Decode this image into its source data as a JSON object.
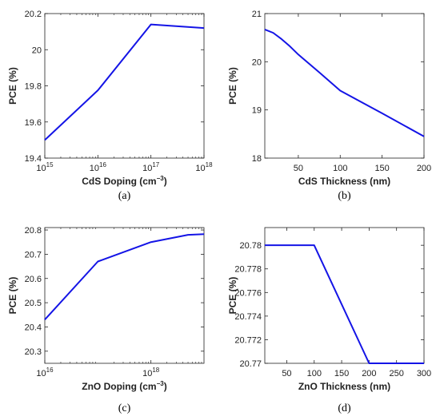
{
  "colors": {
    "line": "#1414e6",
    "axis": "#222222"
  },
  "chart_data": [
    {
      "id": "a",
      "type": "line",
      "caption": "(a)",
      "xlabel": "CdS Doping (cm",
      "xlabel_sup": "−3",
      "xlabel_suffix": ")",
      "ylabel": "PCE (%)",
      "xscale": "log",
      "xlim": [
        1000000000000000.0,
        1e+18
      ],
      "ylim": [
        19.4,
        20.2
      ],
      "xticks": [
        {
          "v": 1000000000000000.0,
          "base": "10",
          "exp": "15"
        },
        {
          "v": 1e+16,
          "base": "10",
          "exp": "16"
        },
        {
          "v": 1e+17,
          "base": "10",
          "exp": "17"
        },
        {
          "v": 1e+18,
          "base": "10",
          "exp": "18"
        }
      ],
      "yticks": [
        {
          "v": 19.4,
          "label": "19.4"
        },
        {
          "v": 19.6,
          "label": "19.6"
        },
        {
          "v": 19.8,
          "label": "19.8"
        },
        {
          "v": 20.0,
          "label": "20"
        },
        {
          "v": 20.2,
          "label": "20.2"
        }
      ],
      "series": [
        {
          "x": [
            1000000000000000.0,
            1e+16,
            1e+17,
            1e+18
          ],
          "y": [
            19.5,
            19.775,
            20.14,
            20.12
          ]
        }
      ]
    },
    {
      "id": "b",
      "type": "line",
      "caption": "(b)",
      "xlabel": "CdS Thickness (nm)",
      "xlabel_sup": "",
      "xlabel_suffix": "",
      "ylabel": "PCE (%)",
      "xscale": "linear",
      "xlim": [
        10,
        200
      ],
      "ylim": [
        18,
        21
      ],
      "xticks": [
        {
          "v": 50,
          "label": "50"
        },
        {
          "v": 100,
          "label": "100"
        },
        {
          "v": 150,
          "label": "150"
        },
        {
          "v": 200,
          "label": "200"
        }
      ],
      "yticks": [
        {
          "v": 18,
          "label": "18"
        },
        {
          "v": 19,
          "label": "19"
        },
        {
          "v": 20,
          "label": "20"
        },
        {
          "v": 21,
          "label": "21"
        }
      ],
      "series": [
        {
          "x": [
            10,
            20,
            30,
            40,
            50,
            75,
            100,
            150,
            200
          ],
          "y": [
            20.67,
            20.6,
            20.47,
            20.32,
            20.15,
            19.78,
            19.4,
            18.93,
            18.45
          ]
        }
      ]
    },
    {
      "id": "c",
      "type": "line",
      "caption": "(c)",
      "xlabel": "ZnO Doping (cm",
      "xlabel_sup": "−3",
      "xlabel_suffix": ")",
      "ylabel": "PCE (%)",
      "xscale": "log",
      "xlim": [
        1e+16,
        1e+19
      ],
      "ylim": [
        20.25,
        20.81
      ],
      "xticks": [
        {
          "v": 1e+16,
          "base": "10",
          "exp": "16"
        },
        {
          "v": 1e+18,
          "base": "10",
          "exp": "18"
        }
      ],
      "yticks": [
        {
          "v": 20.3,
          "label": "20.3"
        },
        {
          "v": 20.4,
          "label": "20.4"
        },
        {
          "v": 20.5,
          "label": "20.5"
        },
        {
          "v": 20.6,
          "label": "20.6"
        },
        {
          "v": 20.7,
          "label": "20.7"
        },
        {
          "v": 20.8,
          "label": "20.8"
        }
      ],
      "series": [
        {
          "x": [
            1e+16,
            1e+17,
            1e+18,
            5e+18,
            1e+19
          ],
          "y": [
            20.43,
            20.67,
            20.75,
            20.78,
            20.783
          ]
        }
      ]
    },
    {
      "id": "d",
      "type": "line",
      "caption": "(d)",
      "xlabel": "ZnO Thickness (nm)",
      "xlabel_sup": "",
      "xlabel_suffix": "",
      "ylabel": "PCE (%)",
      "xscale": "linear",
      "xlim": [
        10,
        300
      ],
      "ylim": [
        20.77,
        20.7815
      ],
      "xticks": [
        {
          "v": 50,
          "label": "50"
        },
        {
          "v": 100,
          "label": "100"
        },
        {
          "v": 150,
          "label": "150"
        },
        {
          "v": 200,
          "label": "200"
        },
        {
          "v": 250,
          "label": "250"
        },
        {
          "v": 300,
          "label": "300"
        }
      ],
      "yticks": [
        {
          "v": 20.77,
          "label": "20.77"
        },
        {
          "v": 20.772,
          "label": "20.772"
        },
        {
          "v": 20.774,
          "label": "20.774"
        },
        {
          "v": 20.776,
          "label": "20.776"
        },
        {
          "v": 20.778,
          "label": "20.778"
        },
        {
          "v": 20.78,
          "label": "20.78"
        }
      ],
      "series": [
        {
          "x": [
            10,
            100,
            200,
            300
          ],
          "y": [
            20.78,
            20.78,
            20.77,
            20.77
          ]
        }
      ]
    }
  ]
}
